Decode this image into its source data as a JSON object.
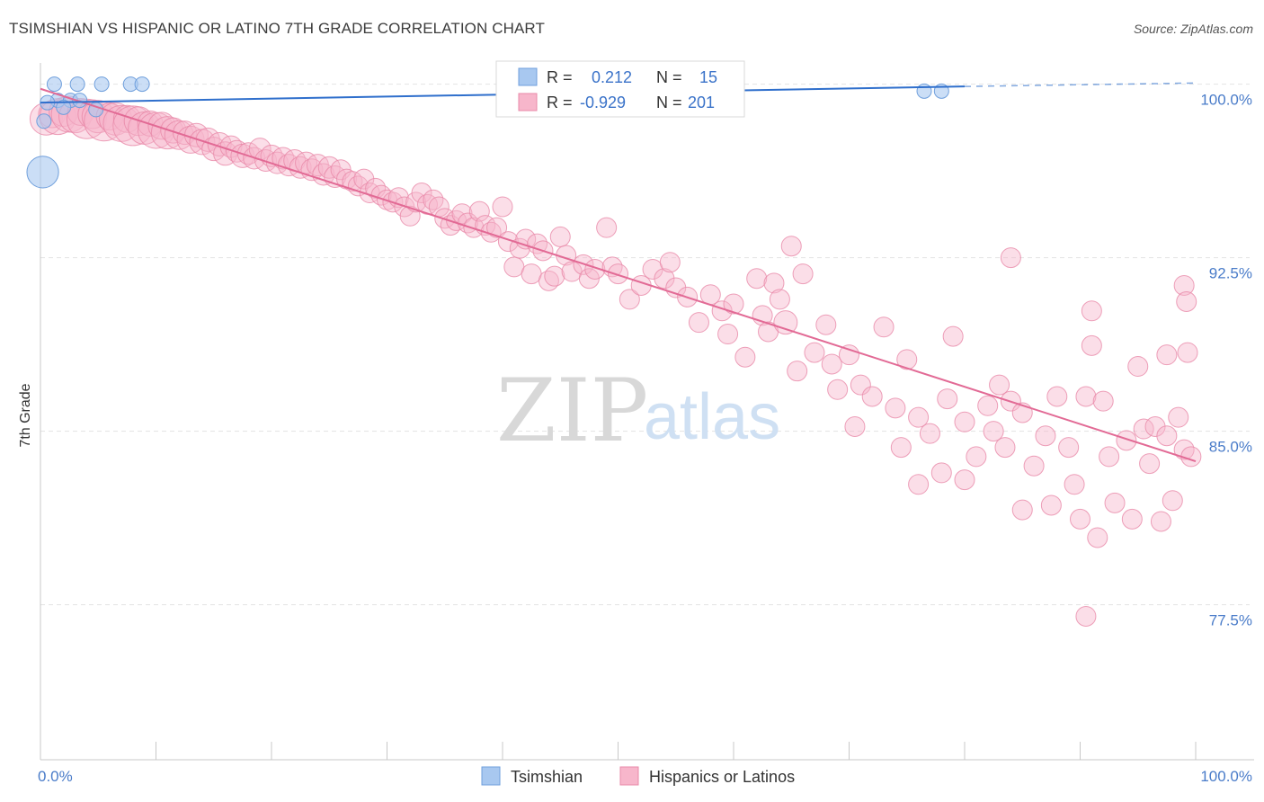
{
  "title": "TSIMSHIAN VS HISPANIC OR LATINO 7TH GRADE CORRELATION CHART",
  "source": "Source: ZipAtlas.com",
  "watermark": {
    "zip": "ZIP",
    "atlas": "atlas"
  },
  "colors": {
    "tsimshian_fill": "#a8c8f0",
    "tsimshian_stroke": "#6f9fdc",
    "tsimshian_line": "#2f6fcc",
    "hispanic_fill": "#f7b6cb",
    "hispanic_stroke": "#e88aa9",
    "hispanic_line": "#e26a95",
    "tick_text": "#4a7cc9",
    "grid": "#e2e2e2"
  },
  "stats": {
    "tsimshian": {
      "r_label": "R =",
      "r_value": "0.212",
      "n_label": "N =",
      "n_value": "15"
    },
    "hispanic": {
      "r_label": "R =",
      "r_value": "-0.929",
      "n_label": "N =",
      "n_value": "201"
    }
  },
  "legend": {
    "tsimshian": "Tsimshian",
    "hispanic": "Hispanics or Latinos"
  },
  "chart_data": {
    "type": "scatter",
    "title": "TSIMSHIAN VS HISPANIC OR LATINO 7TH GRADE CORRELATION CHART",
    "xlabel": "",
    "ylabel": "7th Grade",
    "xlim": [
      0,
      100
    ],
    "ylim": [
      70.8,
      101.5
    ],
    "x_tick_labels": [
      "0.0%",
      "100.0%"
    ],
    "y_ticks": [
      77.5,
      85.0,
      92.5,
      100.0
    ],
    "y_tick_labels": [
      "77.5%",
      "85.0%",
      "92.5%",
      "100.0%"
    ],
    "grid": "horizontal dashed",
    "legend_position": "bottom-center",
    "series": [
      {
        "name": "Tsimshian",
        "trend": {
          "x0": 0,
          "y0": 99.2,
          "x1": 80,
          "y1": 99.9,
          "dashed_to_x": 100,
          "dashed_to_y": 100.05
        },
        "points": [
          [
            1.2,
            100.0,
            1
          ],
          [
            3.2,
            100.0,
            1
          ],
          [
            5.3,
            100.0,
            1
          ],
          [
            7.8,
            100.0,
            1
          ],
          [
            8.8,
            100.0,
            1
          ],
          [
            1.5,
            99.3,
            1
          ],
          [
            2.6,
            99.3,
            1
          ],
          [
            3.4,
            99.3,
            1
          ],
          [
            0.6,
            99.2,
            1
          ],
          [
            2.0,
            99.0,
            1
          ],
          [
            4.8,
            98.9,
            1
          ],
          [
            0.3,
            98.4,
            1
          ],
          [
            0.2,
            96.2,
            2.2
          ],
          [
            76.5,
            99.7,
            1
          ],
          [
            78.0,
            99.7,
            1
          ]
        ]
      },
      {
        "name": "Hispanics or Latinos",
        "trend": {
          "x0": 0,
          "y0": 99.8,
          "x1": 100,
          "y1": 83.7
        },
        "points": [
          [
            0.5,
            98.5,
            1.8
          ],
          [
            1.0,
            98.7,
            1.5
          ],
          [
            1.5,
            98.6,
            2
          ],
          [
            2.0,
            98.8,
            1.6
          ],
          [
            2.5,
            98.7,
            2
          ],
          [
            3.0,
            98.6,
            1.8
          ],
          [
            3.5,
            98.8,
            1.5
          ],
          [
            4.0,
            98.5,
            2.2
          ],
          [
            4.5,
            98.7,
            1.6
          ],
          [
            5.0,
            98.6,
            1.8
          ],
          [
            5.5,
            98.4,
            2.2
          ],
          [
            6.0,
            98.6,
            1.5
          ],
          [
            6.5,
            98.5,
            1.8
          ],
          [
            7.0,
            98.3,
            2
          ],
          [
            7.5,
            98.5,
            1.5
          ],
          [
            8.0,
            98.2,
            2.2
          ],
          [
            8.5,
            98.4,
            1.6
          ],
          [
            9.0,
            98.1,
            1.8
          ],
          [
            9.5,
            98.3,
            1.4
          ],
          [
            10.0,
            98.0,
            2
          ],
          [
            10.5,
            98.2,
            1.5
          ],
          [
            11.0,
            97.9,
            1.8
          ],
          [
            11.5,
            98.0,
            1.4
          ],
          [
            12.0,
            97.8,
            1.6
          ],
          [
            12.5,
            97.9,
            1.3
          ],
          [
            13.0,
            97.6,
            1.5
          ],
          [
            13.5,
            97.8,
            1.3
          ],
          [
            14.0,
            97.5,
            1.4
          ],
          [
            14.5,
            97.6,
            1.3
          ],
          [
            15.0,
            97.2,
            1.3
          ],
          [
            15.5,
            97.4,
            1.3
          ],
          [
            16.0,
            97.0,
            1.3
          ],
          [
            16.5,
            97.3,
            1.2
          ],
          [
            17.0,
            97.1,
            1.2
          ],
          [
            17.5,
            96.9,
            1.3
          ],
          [
            18.0,
            97.0,
            1.2
          ],
          [
            18.5,
            96.8,
            1.2
          ],
          [
            19.0,
            97.2,
            1.2
          ],
          [
            19.5,
            96.7,
            1.2
          ],
          [
            20.0,
            96.9,
            1.2
          ],
          [
            20.5,
            96.6,
            1.2
          ],
          [
            21.0,
            96.8,
            1.2
          ],
          [
            21.5,
            96.5,
            1.2
          ],
          [
            22.0,
            96.7,
            1.2
          ],
          [
            22.5,
            96.4,
            1.2
          ],
          [
            23.0,
            96.6,
            1.2
          ],
          [
            23.5,
            96.3,
            1.2
          ],
          [
            24.0,
            96.5,
            1.2
          ],
          [
            24.5,
            96.1,
            1.2
          ],
          [
            25.0,
            96.4,
            1.2
          ],
          [
            25.5,
            96.0,
            1.2
          ],
          [
            26.0,
            96.3,
            1.1
          ],
          [
            26.5,
            95.9,
            1.1
          ],
          [
            27.0,
            95.8,
            1.1
          ],
          [
            27.5,
            95.6,
            1.1
          ],
          [
            28.0,
            95.9,
            1.1
          ],
          [
            28.5,
            95.3,
            1.1
          ],
          [
            29.0,
            95.5,
            1.1
          ],
          [
            29.5,
            95.2,
            1.1
          ],
          [
            30.0,
            95.0,
            1.1
          ],
          [
            30.5,
            94.9,
            1.1
          ],
          [
            31.0,
            95.1,
            1.1
          ],
          [
            31.5,
            94.7,
            1.1
          ],
          [
            32.0,
            94.3,
            1.1
          ],
          [
            32.5,
            94.9,
            1.1
          ],
          [
            33.0,
            95.3,
            1.1
          ],
          [
            33.5,
            94.8,
            1.1
          ],
          [
            34.0,
            95.0,
            1.1
          ],
          [
            34.5,
            94.7,
            1.1
          ],
          [
            35.0,
            94.2,
            1.1
          ],
          [
            35.5,
            93.9,
            1.1
          ],
          [
            36.0,
            94.1,
            1.1
          ],
          [
            36.5,
            94.4,
            1.1
          ],
          [
            37.0,
            94.0,
            1.1
          ],
          [
            37.5,
            93.8,
            1.1
          ],
          [
            38.0,
            94.5,
            1.1
          ],
          [
            38.5,
            93.9,
            1.1
          ],
          [
            39.0,
            93.6,
            1.1
          ],
          [
            39.5,
            93.8,
            1.1
          ],
          [
            40.0,
            94.7,
            1.1
          ],
          [
            40.5,
            93.2,
            1.1
          ],
          [
            41.0,
            92.1,
            1.1
          ],
          [
            41.5,
            92.9,
            1.1
          ],
          [
            42.0,
            93.3,
            1.1
          ],
          [
            42.5,
            91.8,
            1.1
          ],
          [
            43.0,
            93.1,
            1.1
          ],
          [
            43.5,
            92.8,
            1.1
          ],
          [
            44.0,
            91.5,
            1.1
          ],
          [
            44.5,
            91.7,
            1.1
          ],
          [
            45.0,
            93.4,
            1.1
          ],
          [
            45.5,
            92.6,
            1.1
          ],
          [
            46.0,
            91.9,
            1.1
          ],
          [
            47.0,
            92.2,
            1.1
          ],
          [
            47.5,
            91.6,
            1.1
          ],
          [
            48.0,
            92.0,
            1.1
          ],
          [
            49.0,
            93.8,
            1.1
          ],
          [
            49.5,
            92.1,
            1.1
          ],
          [
            50.0,
            91.8,
            1.1
          ],
          [
            51.0,
            90.7,
            1.1
          ],
          [
            52.0,
            91.3,
            1.1
          ],
          [
            53.0,
            92.0,
            1.1
          ],
          [
            54.0,
            91.6,
            1.1
          ],
          [
            54.5,
            92.3,
            1.1
          ],
          [
            55.0,
            91.2,
            1.1
          ],
          [
            56.0,
            90.8,
            1.1
          ],
          [
            57.0,
            89.7,
            1.1
          ],
          [
            58.0,
            90.9,
            1.1
          ],
          [
            59.0,
            90.2,
            1.1
          ],
          [
            59.5,
            89.2,
            1.1
          ],
          [
            60.0,
            90.5,
            1.1
          ],
          [
            61.0,
            88.2,
            1.1
          ],
          [
            62.0,
            91.6,
            1.1
          ],
          [
            62.5,
            90.0,
            1.1
          ],
          [
            63.0,
            89.3,
            1.1
          ],
          [
            63.5,
            91.4,
            1.1
          ],
          [
            64.0,
            90.7,
            1.1
          ],
          [
            65.0,
            93.0,
            1.1
          ],
          [
            65.5,
            87.6,
            1.1
          ],
          [
            66.0,
            91.8,
            1.1
          ],
          [
            67.0,
            88.4,
            1.1
          ],
          [
            68.0,
            89.6,
            1.1
          ],
          [
            68.5,
            87.9,
            1.1
          ],
          [
            69.0,
            86.8,
            1.1
          ],
          [
            70.0,
            88.3,
            1.1
          ],
          [
            70.5,
            85.2,
            1.1
          ],
          [
            71.0,
            87.0,
            1.1
          ],
          [
            72.0,
            86.5,
            1.1
          ],
          [
            73.0,
            89.5,
            1.1
          ],
          [
            74.0,
            86.0,
            1.1
          ],
          [
            74.5,
            84.3,
            1.1
          ],
          [
            75.0,
            88.1,
            1.1
          ],
          [
            76.0,
            85.6,
            1.1
          ],
          [
            77.0,
            84.9,
            1.1
          ],
          [
            78.0,
            83.2,
            1.1
          ],
          [
            78.5,
            86.4,
            1.1
          ],
          [
            79.0,
            89.1,
            1.1
          ],
          [
            80.0,
            85.4,
            1.1
          ],
          [
            81.0,
            83.9,
            1.1
          ],
          [
            82.0,
            86.1,
            1.1
          ],
          [
            82.5,
            85.0,
            1.1
          ],
          [
            83.0,
            87.0,
            1.1
          ],
          [
            83.5,
            84.3,
            1.1
          ],
          [
            84.0,
            86.3,
            1.1
          ],
          [
            85.0,
            85.8,
            1.1
          ],
          [
            86.0,
            83.5,
            1.1
          ],
          [
            87.0,
            84.8,
            1.1
          ],
          [
            87.5,
            81.8,
            1.1
          ],
          [
            88.0,
            86.5,
            1.1
          ],
          [
            89.0,
            84.3,
            1.1
          ],
          [
            89.5,
            82.7,
            1.1
          ],
          [
            90.0,
            81.2,
            1.1
          ],
          [
            90.5,
            86.5,
            1.1
          ],
          [
            91.0,
            88.7,
            1.1
          ],
          [
            91.5,
            80.4,
            1.1
          ],
          [
            92.0,
            86.3,
            1.1
          ],
          [
            92.5,
            83.9,
            1.1
          ],
          [
            93.0,
            81.9,
            1.1
          ],
          [
            94.0,
            84.6,
            1.1
          ],
          [
            94.5,
            81.2,
            1.1
          ],
          [
            95.0,
            87.8,
            1.1
          ],
          [
            95.5,
            85.1,
            1.1
          ],
          [
            96.0,
            83.6,
            1.1
          ],
          [
            96.5,
            85.2,
            1.1
          ],
          [
            97.0,
            81.1,
            1.1
          ],
          [
            97.5,
            84.8,
            1.1
          ],
          [
            98.0,
            82.0,
            1.1
          ],
          [
            98.5,
            85.6,
            1.1
          ],
          [
            99.0,
            84.2,
            1.1
          ],
          [
            99.3,
            88.4,
            1.1
          ],
          [
            99.6,
            83.9,
            1.1
          ],
          [
            64.5,
            89.7,
            1.3
          ],
          [
            84.0,
            92.5,
            1.1
          ],
          [
            91.0,
            90.2,
            1.1
          ],
          [
            99.0,
            91.3,
            1.1
          ],
          [
            99.2,
            90.6,
            1.1
          ],
          [
            97.5,
            88.3,
            1.1
          ],
          [
            90.5,
            77.0,
            1.1
          ],
          [
            85.0,
            81.6,
            1.1
          ],
          [
            80.0,
            82.9,
            1.1
          ],
          [
            76.0,
            82.7,
            1.1
          ]
        ]
      }
    ]
  }
}
